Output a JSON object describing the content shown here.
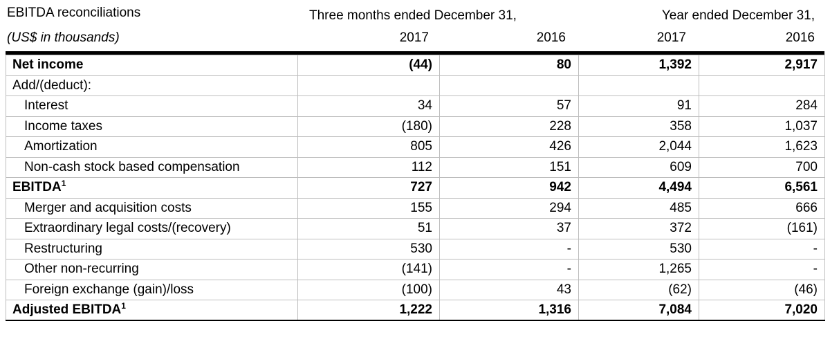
{
  "header": {
    "title": "EBITDA reconciliations",
    "unit_note": "(US$ in thousands)",
    "period_three_months": "Three months ended December 31,",
    "period_year": "Year ended December 31,",
    "col_years": [
      "2017",
      "2016",
      "2017",
      "2016"
    ]
  },
  "rows": [
    {
      "label": "Net income",
      "bold": true,
      "indent": false,
      "values": [
        "(44)",
        "80",
        "1,392",
        "2,917"
      ]
    },
    {
      "label": "Add/(deduct):",
      "bold": false,
      "indent": false,
      "values": [
        "",
        "",
        "",
        ""
      ]
    },
    {
      "label": "Interest",
      "bold": false,
      "indent": true,
      "values": [
        "34",
        "57",
        "91",
        "284"
      ]
    },
    {
      "label": "Income taxes",
      "bold": false,
      "indent": true,
      "values": [
        "(180)",
        "228",
        "358",
        "1,037"
      ]
    },
    {
      "label": "Amortization",
      "bold": false,
      "indent": true,
      "values": [
        "805",
        "426",
        "2,044",
        "1,623"
      ]
    },
    {
      "label": "Non-cash stock based compensation",
      "bold": false,
      "indent": true,
      "values": [
        "112",
        "151",
        "609",
        "700"
      ]
    },
    {
      "label": "EBITDA",
      "sup": "1",
      "bold": true,
      "indent": false,
      "values": [
        "727",
        "942",
        "4,494",
        "6,561"
      ]
    },
    {
      "label": "Merger and acquisition costs",
      "bold": false,
      "indent": true,
      "values": [
        "155",
        "294",
        "485",
        "666"
      ]
    },
    {
      "label": "Extraordinary legal costs/(recovery)",
      "bold": false,
      "indent": true,
      "values": [
        "51",
        "37",
        "372",
        "(161)"
      ]
    },
    {
      "label": "Restructuring",
      "bold": false,
      "indent": true,
      "values": [
        "530",
        "-",
        "530",
        "-"
      ]
    },
    {
      "label": "Other non-recurring",
      "bold": false,
      "indent": true,
      "values": [
        "(141)",
        "-",
        "1,265",
        "-"
      ]
    },
    {
      "label": "Foreign exchange (gain)/loss",
      "bold": false,
      "indent": true,
      "values": [
        "(100)",
        "43",
        "(62)",
        "(46)"
      ]
    },
    {
      "label": "Adjusted EBITDA",
      "sup": "1",
      "bold": true,
      "indent": false,
      "values": [
        "1,222",
        "1,316",
        "7,084",
        "7,020"
      ]
    }
  ]
}
